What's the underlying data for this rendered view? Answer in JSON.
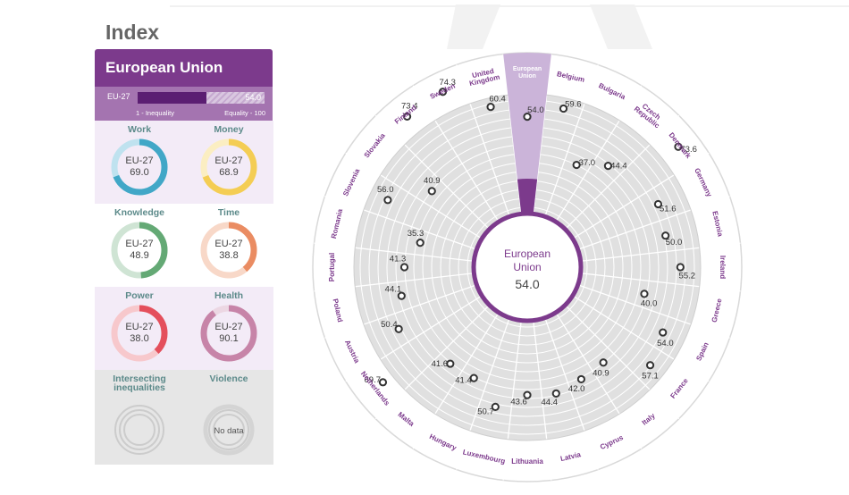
{
  "page": {
    "title": "Index"
  },
  "panel": {
    "header": "European Union",
    "strip": {
      "label": "EU-27",
      "value": "54.0",
      "fill_fraction": 0.54,
      "min_label": "1 - Inequality",
      "max_label": "Equality - 100"
    },
    "domains": [
      {
        "title": "Work",
        "label": "EU-27",
        "value": "69.0",
        "score": 69.0,
        "color": "#41a7c7",
        "track": "#bfe2ef",
        "bg": "#f3ebf7"
      },
      {
        "title": "Money",
        "label": "EU-27",
        "value": "68.9",
        "score": 68.9,
        "color": "#f4cd54",
        "track": "#fbeec2",
        "bg": "#f3ebf7"
      },
      {
        "title": "Knowledge",
        "label": "EU-27",
        "value": "48.9",
        "score": 48.9,
        "color": "#64a975",
        "track": "#cfe4d4",
        "bg": "#ffffff"
      },
      {
        "title": "Time",
        "label": "EU-27",
        "value": "38.8",
        "score": 38.8,
        "color": "#ea8c62",
        "track": "#f8d8c8",
        "bg": "#ffffff"
      },
      {
        "title": "Power",
        "label": "EU-27",
        "value": "38.0",
        "score": 38.0,
        "color": "#e44f5c",
        "track": "#f7c8cc",
        "bg": "#f3ebf7"
      },
      {
        "title": "Health",
        "label": "EU-27",
        "value": "90.1",
        "score": 90.1,
        "color": "#c784a8",
        "track": "#ecd7e3",
        "bg": "#f3ebf7"
      },
      {
        "title": "Intersecting inequalities",
        "bg": "#e6e6e6"
      },
      {
        "title": "Violence",
        "nodata": "No data",
        "bg": "#e6e6e6"
      }
    ]
  },
  "chart_data": {
    "type": "radial",
    "center_label": "European Union",
    "center_value": "54.0",
    "highlight_index": 0,
    "range": [
      0,
      100
    ],
    "colors": {
      "accent": "#7c3a8c",
      "wedge": "#cbb4d9",
      "face": "#e0e0e0",
      "ring": "#ffffff",
      "label": "#7c3a8c"
    },
    "countries": [
      {
        "name": "European Union",
        "value": 54.0,
        "label": "54.0"
      },
      {
        "name": "Belgium",
        "value": 59.6,
        "label": "59.6"
      },
      {
        "name": "Bulgaria",
        "value": 37.0,
        "label": "37.0"
      },
      {
        "name": "Czech Republic",
        "value": 44.4,
        "label": "44.4"
      },
      {
        "name": "Denmark",
        "value": 73.6,
        "label": "73.6"
      },
      {
        "name": "Germany",
        "value": 51.6,
        "label": "51.6"
      },
      {
        "name": "Estonia",
        "value": 50.0,
        "label": "50.0"
      },
      {
        "name": "Ireland",
        "value": 55.2,
        "label": "55.2"
      },
      {
        "name": "Greece",
        "value": 40.0,
        "label": "40.0"
      },
      {
        "name": "Spain",
        "value": 54.0,
        "label": "54.0"
      },
      {
        "name": "France",
        "value": 57.1,
        "label": "57.1"
      },
      {
        "name": "Italy",
        "value": 40.9,
        "label": "40.9"
      },
      {
        "name": "Cyprus",
        "value": 42.0,
        "label": "42.0"
      },
      {
        "name": "Latvia",
        "value": 44.4,
        "label": "44.4"
      },
      {
        "name": "Lithuania",
        "value": 43.6,
        "label": "43.6"
      },
      {
        "name": "Luxembourg",
        "value": 50.7,
        "label": "50.7"
      },
      {
        "name": "Hungary",
        "value": 41.4,
        "label": "41.4"
      },
      {
        "name": "Malta",
        "value": 41.6,
        "label": "41.6"
      },
      {
        "name": "Netherlands",
        "value": 69.7,
        "label": "69.7"
      },
      {
        "name": "Austria",
        "value": 50.4,
        "label": "50.4"
      },
      {
        "name": "Poland",
        "value": 44.1,
        "label": "44.1"
      },
      {
        "name": "Portugal",
        "value": 41.3,
        "label": "41.3"
      },
      {
        "name": "Romania",
        "value": 35.3,
        "label": "35.3"
      },
      {
        "name": "Slovenia",
        "value": 56.0,
        "label": "56.0"
      },
      {
        "name": "Slovakia",
        "value": 40.9,
        "label": "40.9"
      },
      {
        "name": "Finland",
        "value": 73.4,
        "label": "73.4"
      },
      {
        "name": "Sweden",
        "value": 74.3,
        "label": "74.3"
      },
      {
        "name": "United Kingdom",
        "value": 60.4,
        "label": "60.4"
      }
    ]
  }
}
